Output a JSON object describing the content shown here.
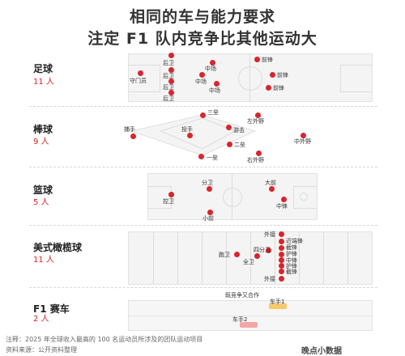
{
  "title": {
    "line1": "相同的车与能力要求",
    "line2": "注定 F1 队内竞争比其他运动大"
  },
  "sports": {
    "soccer": {
      "name": "足球",
      "count": "11 人",
      "positions": {
        "gk": "守门员",
        "d1": "后卫",
        "d2": "后卫",
        "d3": "后卫",
        "d4": "后卫",
        "m1": "中场",
        "m2": "中场",
        "m3": "中场",
        "f1": "前锋",
        "f2": "前锋",
        "f3": "前锋"
      }
    },
    "baseball": {
      "name": "棒球",
      "count": "9 人",
      "positions": {
        "catcher": "捕手",
        "pitcher": "投手",
        "third": "三垒",
        "ss": "游击",
        "second": "二垒",
        "first": "一垒",
        "lf": "左外野",
        "cf": "中外野",
        "rf": "右外野"
      }
    },
    "basketball": {
      "name": "篮球",
      "count": "5 人",
      "positions": {
        "pg": "控卫",
        "sg": "分卫",
        "sf": "小前",
        "pf": "大前",
        "c": "中锋"
      }
    },
    "football": {
      "name": "美式橄榄球",
      "count": "11 人",
      "positions": {
        "wr1": "外接",
        "wr2": "外接",
        "qb": "四分卫",
        "rb": "跑卫",
        "fb": "全卫",
        "te": "近端锋",
        "ol1": "截锋",
        "ol2": "护锋",
        "ol3": "中锋",
        "ol4": "护锋",
        "ol5": "截锋"
      }
    },
    "f1": {
      "name": "F1 赛车",
      "count": "2 人",
      "relation": "既竞争又合作",
      "driver1": "车手1",
      "driver2": "车手2"
    }
  },
  "footer": {
    "note": "注释：2025 年全球收入最高的 100 名运动员所涉及的团队运动项目",
    "source": "资料来源：公开资料整理",
    "brand": "晚点小数据"
  },
  "colors": {
    "dot": "#d9252c",
    "field": "#f4f4f4",
    "line": "#dcdcdc",
    "count": "#dd2222",
    "car1": "#f6c96a",
    "car2": "#f4a5a5"
  }
}
